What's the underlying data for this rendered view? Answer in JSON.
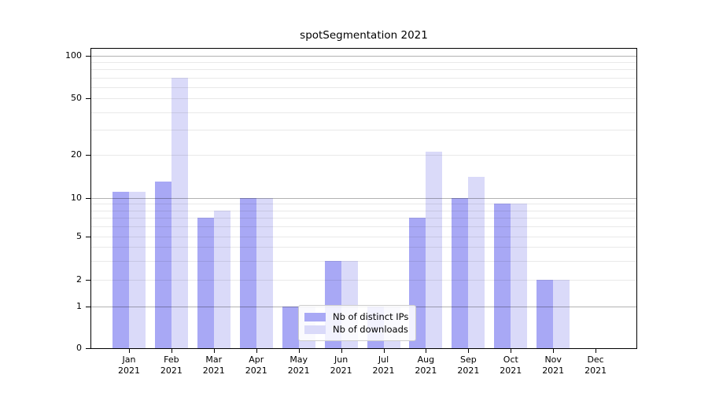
{
  "chart_data": {
    "type": "bar",
    "title": "spotSegmentation 2021",
    "categories": [
      "Jan 2021",
      "Feb 2021",
      "Mar 2021",
      "Apr 2021",
      "May 2021",
      "Jun 2021",
      "Jul 2021",
      "Aug 2021",
      "Sep 2021",
      "Oct 2021",
      "Nov 2021",
      "Dec 2021"
    ],
    "series": [
      {
        "name": "Nb of distinct IPs",
        "color": "#a8a8f5",
        "values": [
          11,
          13,
          7,
          10,
          1,
          3,
          1,
          7,
          10,
          9,
          2,
          0
        ]
      },
      {
        "name": "Nb of downloads",
        "color": "#dadaf9",
        "values": [
          11,
          70,
          8,
          10,
          1,
          3,
          1,
          21,
          14,
          9,
          2,
          0
        ]
      }
    ],
    "yaxis": {
      "scale": "symlog",
      "ylim": [
        0,
        100
      ],
      "ticks": [
        0,
        1,
        2,
        5,
        10,
        20,
        50,
        100
      ]
    },
    "grid": {
      "major_lines": [
        1,
        10,
        100
      ],
      "minor_lines": [
        2,
        3,
        4,
        5,
        6,
        7,
        8,
        9,
        20,
        30,
        40,
        50,
        60,
        70,
        80,
        90
      ]
    },
    "legend": {
      "position": "lower-center"
    }
  }
}
